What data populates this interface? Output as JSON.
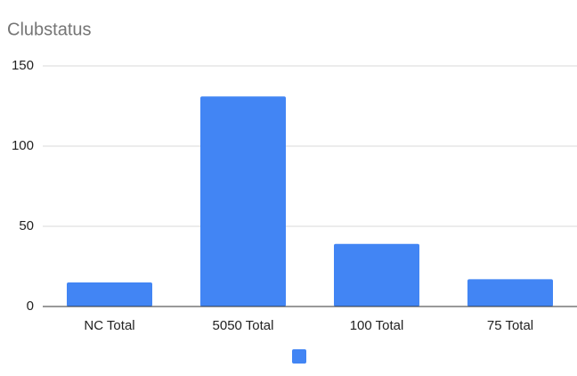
{
  "chart_data": {
    "type": "bar",
    "title": "Clubstatus",
    "categories": [
      "NC Total",
      "5050 Total",
      "100 Total",
      "75 Total"
    ],
    "series": [
      {
        "color": "#4285f4",
        "values": [
          15,
          131,
          39,
          17
        ]
      }
    ],
    "ylim": [
      0,
      150
    ],
    "yticks": [
      0,
      50,
      100,
      150
    ],
    "grid": true,
    "legend": "bottom"
  }
}
